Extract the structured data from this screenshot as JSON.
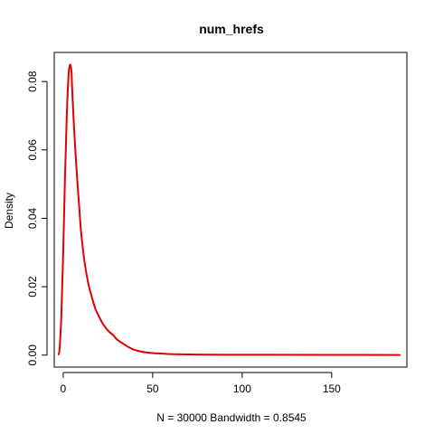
{
  "chart_data": {
    "type": "line",
    "title": "num_hrefs",
    "xlabel": "N = 30000   Bandwidth = 0.8545",
    "ylabel": "Density",
    "xlim": [
      -5,
      192
    ],
    "ylim": [
      -0.0035,
      0.0885
    ],
    "x_ticks": [
      0,
      50,
      100,
      150
    ],
    "x_tick_labels": [
      "0",
      "50",
      "100",
      "150"
    ],
    "y_ticks": [
      0.0,
      0.02,
      0.04,
      0.06,
      0.08
    ],
    "y_tick_labels": [
      "0.00",
      "0.02",
      "0.04",
      "0.06",
      "0.08"
    ],
    "grid": false,
    "series": [
      {
        "color": "#e00000",
        "x": [
          -2.6,
          -2,
          -1,
          0,
          1,
          2,
          3,
          3.6,
          4,
          4.6,
          5,
          6,
          7,
          8,
          9,
          10,
          12,
          14,
          16,
          18,
          20,
          22,
          25,
          28,
          30,
          33,
          36,
          40,
          45,
          50,
          55,
          60,
          70,
          80,
          100,
          120,
          150,
          188
        ],
        "y": [
          0.0002,
          0.002,
          0.012,
          0.03,
          0.052,
          0.07,
          0.082,
          0.0845,
          0.0848,
          0.083,
          0.078,
          0.067,
          0.058,
          0.05,
          0.043,
          0.036,
          0.027,
          0.021,
          0.017,
          0.0135,
          0.0113,
          0.0093,
          0.0072,
          0.0058,
          0.0046,
          0.0035,
          0.0025,
          0.0015,
          0.0009,
          0.0006,
          0.00045,
          0.0003,
          0.0002,
          0.00015,
          0.0001,
          0.0001,
          8e-05,
          5e-05
        ]
      }
    ]
  }
}
